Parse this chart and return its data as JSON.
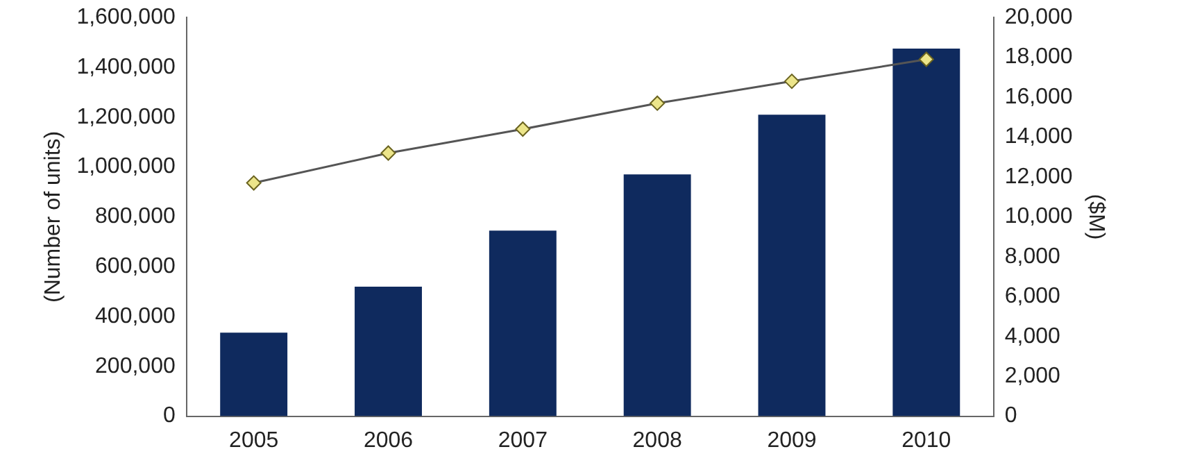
{
  "chart_data": {
    "type": "bar",
    "categories": [
      "2005",
      "2006",
      "2007",
      "2008",
      "2009",
      "2010"
    ],
    "ylabel": "(Number of units)",
    "y2label": "($M)",
    "series": [
      {
        "color": "#0f2a5e",
        "values": [
          335000,
          520000,
          745000,
          970000,
          1210000,
          1475000
        ]
      },
      {
        "type": "line",
        "axis": "y2",
        "color": "#555555",
        "marker": "diamond",
        "values": [
          11700,
          13200,
          14400,
          15700,
          16800,
          17900
        ]
      }
    ],
    "ylim": [
      0,
      1600000
    ],
    "yticks": [
      0,
      {
        "value": 200000,
        "label": "200,000"
      },
      {
        "value": 400000,
        "label": "400,000"
      },
      {
        "value": 600000,
        "label": "600,000"
      },
      {
        "value": 800000,
        "label": "800,000"
      },
      {
        "value": 1000000,
        "label": "1,000,000"
      },
      {
        "value": 1200000,
        "label": "1,200,000"
      },
      {
        "value": 1400000,
        "label": "1,400,000"
      },
      {
        "value": 1600000,
        "label": "1,600,000"
      }
    ],
    "y2lim": [
      0,
      20000
    ],
    "y2ticks": [
      0,
      {
        "value": 2000,
        "label": "2,000"
      },
      {
        "value": 4000,
        "label": "4,000"
      },
      {
        "value": 6000,
        "label": "6,000"
      },
      {
        "value": 8000,
        "label": "8,000"
      },
      {
        "value": 10000,
        "label": "10,000"
      },
      {
        "value": 12000,
        "label": "12,000"
      },
      {
        "value": 14000,
        "label": "14,000"
      },
      {
        "value": 16000,
        "label": "16,000"
      },
      {
        "value": 18000,
        "label": "18,000"
      },
      {
        "value": 20000,
        "label": "20,000"
      }
    ],
    "grid": false,
    "legend": false
  }
}
